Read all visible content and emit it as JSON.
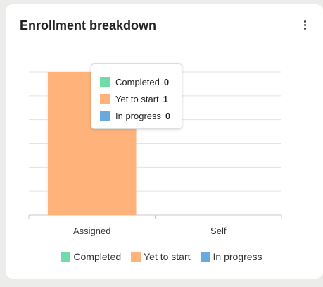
{
  "card": {
    "title": "Enrollment breakdown"
  },
  "chart_data": {
    "type": "bar",
    "stacked": true,
    "categories": [
      "Assigned",
      "Self"
    ],
    "series": [
      {
        "name": "Completed",
        "values": [
          0,
          0
        ],
        "color": "#6fdcaa"
      },
      {
        "name": "Yet to start",
        "values": [
          1,
          0
        ],
        "color": "#ffb37a"
      },
      {
        "name": "In progress",
        "values": [
          0,
          0
        ],
        "color": "#6aa9de"
      }
    ],
    "ylim": [
      0,
      1
    ],
    "grid": true,
    "legend": "bottom-center",
    "hovered_category": "Assigned"
  },
  "tooltip": {
    "rows": [
      {
        "label": "Completed",
        "value": "0",
        "color": "#6fdcaa"
      },
      {
        "label": "Yet to start",
        "value": "1",
        "color": "#ffb37a"
      },
      {
        "label": "In progress",
        "value": "0",
        "color": "#6aa9de"
      }
    ]
  },
  "legend": {
    "items": [
      {
        "label": "Completed",
        "color": "#6fdcaa"
      },
      {
        "label": "Yet to start",
        "color": "#ffb37a"
      },
      {
        "label": "In progress",
        "color": "#6aa9de"
      }
    ]
  },
  "menu": {
    "icon": "vertical-dots-icon"
  }
}
